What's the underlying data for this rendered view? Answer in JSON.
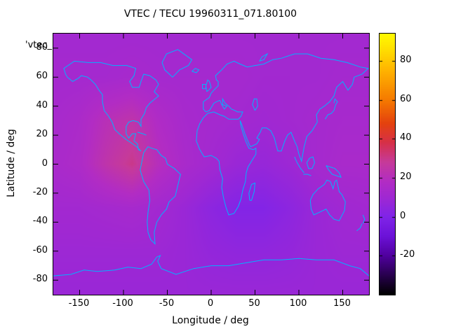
{
  "colors": {
    "background": "#ffffff",
    "text": "#000000",
    "border": "#000000"
  },
  "chart_data": {
    "type": "heatmap",
    "title": "VTEC / TECU 19960311_071.80100",
    "key_label": "'vtec_",
    "xlabel": "Longitude / deg",
    "ylabel": "Latitude / deg",
    "xlim": [
      -180,
      180
    ],
    "ylim": [
      -90,
      90
    ],
    "zlim": [
      -40,
      94
    ],
    "grid_on": false,
    "legend_position": "colorbar-right",
    "xticks": [
      -150,
      -100,
      -50,
      0,
      50,
      100,
      150
    ],
    "yticks": [
      80,
      60,
      40,
      20,
      0,
      -20,
      -40,
      -60,
      -80
    ],
    "colorbar_ticks": [
      80,
      60,
      40,
      20,
      0,
      -20
    ],
    "coast_color": "#00b4ff",
    "palette": [
      {
        "value": -40,
        "color": "#000000"
      },
      {
        "value": -30,
        "color": "#28004e"
      },
      {
        "value": -20,
        "color": "#50009e"
      },
      {
        "value": -10,
        "color": "#6c12d8"
      },
      {
        "value": 0,
        "color": "#8024e8"
      },
      {
        "value": 10,
        "color": "#a028d2"
      },
      {
        "value": 18,
        "color": "#b22cc4"
      },
      {
        "value": 28,
        "color": "#c63a9a"
      },
      {
        "value": 38,
        "color": "#d63048"
      },
      {
        "value": 48,
        "color": "#e4420e"
      },
      {
        "value": 60,
        "color": "#f57a00"
      },
      {
        "value": 75,
        "color": "#ffb300"
      },
      {
        "value": 86,
        "color": "#ffdf00"
      },
      {
        "value": 94,
        "color": "#fffb00"
      }
    ],
    "grid": {
      "lons": [
        -180,
        -150,
        -120,
        -90,
        -60,
        -30,
        0,
        30,
        60,
        90,
        120,
        150,
        180
      ],
      "lats": [
        90,
        60,
        30,
        0,
        -30,
        -60,
        -90
      ],
      "values": [
        [
          11,
          11,
          11,
          11,
          11,
          11,
          11,
          11,
          11,
          11,
          11,
          11,
          11
        ],
        [
          12,
          12,
          12,
          13,
          12,
          12,
          12,
          12,
          11,
          11,
          11,
          12,
          12
        ],
        [
          13,
          15,
          21,
          24,
          17,
          13,
          12,
          11,
          10,
          11,
          12,
          13,
          13
        ],
        [
          14,
          16,
          24,
          30,
          20,
          14,
          11,
          8,
          7,
          9,
          12,
          14,
          14
        ],
        [
          11,
          11,
          12,
          13,
          11,
          8,
          4,
          1,
          1,
          4,
          8,
          10,
          11
        ],
        [
          9,
          9,
          9,
          9,
          9,
          8,
          6,
          5,
          5,
          6,
          8,
          9,
          9
        ],
        [
          8,
          8,
          8,
          8,
          8,
          8,
          8,
          8,
          8,
          8,
          8,
          8,
          8
        ]
      ]
    },
    "coastlines": [
      [
        [
          -166,
          62
        ],
        [
          -168,
          66
        ],
        [
          -156,
          71
        ],
        [
          -140,
          70
        ],
        [
          -126,
          70
        ],
        [
          -112,
          68
        ],
        [
          -96,
          68
        ],
        [
          -86,
          66
        ],
        [
          -88,
          61
        ],
        [
          -93,
          57
        ],
        [
          -90,
          53
        ],
        [
          -82,
          53
        ],
        [
          -80,
          57
        ],
        [
          -77,
          62
        ],
        [
          -70,
          61
        ],
        [
          -63,
          58
        ],
        [
          -60,
          55
        ],
        [
          -65,
          50
        ],
        [
          -60,
          47
        ],
        [
          -66,
          44
        ],
        [
          -70,
          42
        ],
        [
          -74,
          39
        ],
        [
          -76,
          35
        ],
        [
          -80,
          31
        ],
        [
          -80,
          26
        ],
        [
          -83,
          29
        ],
        [
          -89,
          30
        ],
        [
          -94,
          29
        ],
        [
          -97,
          26
        ],
        [
          -97,
          21
        ],
        [
          -94,
          18
        ],
        [
          -90,
          21
        ],
        [
          -86,
          21
        ],
        [
          -88,
          16
        ],
        [
          -84,
          14
        ],
        [
          -83,
          10
        ],
        [
          -80,
          9
        ],
        [
          -85,
          12
        ],
        [
          -92,
          15
        ],
        [
          -97,
          17
        ],
        [
          -105,
          21
        ],
        [
          -110,
          24
        ],
        [
          -113,
          29
        ],
        [
          -117,
          33
        ],
        [
          -122,
          37
        ],
        [
          -124,
          43
        ],
        [
          -124,
          48
        ],
        [
          -128,
          51
        ],
        [
          -132,
          55
        ],
        [
          -137,
          58
        ],
        [
          -141,
          60
        ],
        [
          -148,
          61
        ],
        [
          -152,
          59
        ],
        [
          -158,
          57
        ],
        [
          -164,
          60
        ],
        [
          -166,
          62
        ]
      ],
      [
        [
          -77,
          8
        ],
        [
          -79,
          2
        ],
        [
          -81,
          -4
        ],
        [
          -77,
          -12
        ],
        [
          -71,
          -18
        ],
        [
          -70,
          -25
        ],
        [
          -72,
          -33
        ],
        [
          -73,
          -40
        ],
        [
          -72,
          -47
        ],
        [
          -69,
          -52
        ],
        [
          -64,
          -55
        ],
        [
          -65,
          -47
        ],
        [
          -62,
          -40
        ],
        [
          -57,
          -35
        ],
        [
          -51,
          -31
        ],
        [
          -48,
          -26
        ],
        [
          -41,
          -22
        ],
        [
          -37,
          -12
        ],
        [
          -35,
          -7
        ],
        [
          -42,
          -3
        ],
        [
          -50,
          0
        ],
        [
          -52,
          4
        ],
        [
          -57,
          6
        ],
        [
          -62,
          10
        ],
        [
          -68,
          11
        ],
        [
          -72,
          12
        ],
        [
          -77,
          8
        ]
      ],
      [
        [
          -44,
          60
        ],
        [
          -53,
          65
        ],
        [
          -56,
          70
        ],
        [
          -51,
          76
        ],
        [
          -38,
          79
        ],
        [
          -22,
          72
        ],
        [
          -26,
          68
        ],
        [
          -36,
          65
        ],
        [
          -44,
          60
        ]
      ],
      [
        [
          -6,
          36
        ],
        [
          -9,
          38
        ],
        [
          -9,
          43
        ],
        [
          -2,
          46
        ],
        [
          0,
          49
        ],
        [
          3,
          51
        ],
        [
          8,
          54
        ],
        [
          8,
          57
        ],
        [
          6,
          58
        ],
        [
          5,
          61
        ],
        [
          12,
          65
        ],
        [
          18,
          69
        ],
        [
          26,
          71
        ],
        [
          33,
          69
        ],
        [
          41,
          67
        ],
        [
          50,
          68
        ],
        [
          60,
          69
        ],
        [
          70,
          72
        ],
        [
          80,
          73
        ],
        [
          95,
          76
        ],
        [
          110,
          76
        ],
        [
          125,
          73
        ],
        [
          140,
          72
        ],
        [
          155,
          70
        ],
        [
          170,
          67
        ],
        [
          179,
          66
        ],
        [
          172,
          62
        ],
        [
          163,
          60
        ],
        [
          161,
          55
        ],
        [
          156,
          51
        ],
        [
          150,
          57
        ],
        [
          143,
          53
        ],
        [
          140,
          47
        ],
        [
          135,
          43
        ],
        [
          129,
          40
        ],
        [
          124,
          38
        ],
        [
          120,
          34
        ],
        [
          121,
          29
        ],
        [
          115,
          23
        ],
        [
          109,
          19
        ],
        [
          106,
          12
        ],
        [
          103,
          2
        ],
        [
          100,
          7
        ],
        [
          98,
          12
        ],
        [
          95,
          16
        ],
        [
          91,
          22
        ],
        [
          87,
          20
        ],
        [
          84,
          16
        ],
        [
          80,
          9
        ],
        [
          76,
          9
        ],
        [
          72,
          18
        ],
        [
          68,
          23
        ],
        [
          63,
          25
        ],
        [
          58,
          25
        ],
        [
          56,
          22
        ],
        [
          52,
          18
        ],
        [
          55,
          17
        ],
        [
          52,
          14
        ],
        [
          45,
          12
        ],
        [
          43,
          14
        ],
        [
          39,
          20
        ],
        [
          35,
          27
        ],
        [
          33,
          30
        ],
        [
          34,
          26
        ],
        [
          37,
          20
        ],
        [
          40,
          15
        ],
        [
          43,
          11
        ],
        [
          48,
          10
        ],
        [
          51,
          11
        ],
        [
          51,
          7
        ],
        [
          46,
          2
        ],
        [
          42,
          -2
        ],
        [
          40,
          -6
        ],
        [
          39,
          -12
        ],
        [
          36,
          -18
        ],
        [
          34,
          -24
        ],
        [
          31,
          -29
        ],
        [
          26,
          -34
        ],
        [
          20,
          -35
        ],
        [
          17,
          -30
        ],
        [
          14,
          -23
        ],
        [
          12,
          -16
        ],
        [
          13,
          -10
        ],
        [
          10,
          -4
        ],
        [
          9,
          2
        ],
        [
          6,
          4
        ],
        [
          0,
          6
        ],
        [
          -8,
          5
        ],
        [
          -13,
          10
        ],
        [
          -17,
          16
        ],
        [
          -16,
          23
        ],
        [
          -13,
          28
        ],
        [
          -9,
          32
        ],
        [
          -4,
          35
        ],
        [
          3,
          36
        ],
        [
          10,
          34
        ],
        [
          15,
          33
        ],
        [
          20,
          31
        ],
        [
          27,
          31
        ],
        [
          31,
          31
        ],
        [
          34,
          33
        ],
        [
          36,
          36
        ],
        [
          30,
          36
        ],
        [
          27,
          37
        ],
        [
          23,
          38
        ],
        [
          20,
          40
        ],
        [
          16,
          42
        ],
        [
          13,
          45
        ],
        [
          13,
          41
        ],
        [
          18,
          40
        ],
        [
          15,
          38
        ],
        [
          12,
          41
        ],
        [
          10,
          44
        ],
        [
          6,
          43
        ],
        [
          3,
          42
        ],
        [
          0,
          39
        ],
        [
          -2,
          37
        ],
        [
          -6,
          36
        ]
      ],
      [
        [
          -5,
          50
        ],
        [
          -6,
          54
        ],
        [
          -4,
          58
        ],
        [
          -2,
          57
        ],
        [
          0,
          53
        ],
        [
          -3,
          51
        ],
        [
          -5,
          50
        ]
      ],
      [
        [
          -10,
          52
        ],
        [
          -10,
          55
        ],
        [
          -6,
          55
        ],
        [
          -6,
          52
        ],
        [
          -10,
          52
        ]
      ],
      [
        [
          -22,
          64
        ],
        [
          -18,
          66
        ],
        [
          -14,
          65
        ],
        [
          -17,
          63
        ],
        [
          -22,
          64
        ]
      ],
      [
        [
          130,
          31
        ],
        [
          133,
          34
        ],
        [
          137,
          35
        ],
        [
          140,
          37
        ],
        [
          142,
          41
        ],
        [
          144,
          43
        ],
        [
          141,
          45
        ],
        [
          140,
          42
        ]
      ],
      [
        [
          113,
          -25
        ],
        [
          116,
          -21
        ],
        [
          122,
          -17
        ],
        [
          129,
          -14
        ],
        [
          132,
          -11
        ],
        [
          136,
          -12
        ],
        [
          139,
          -17
        ],
        [
          141,
          -12
        ],
        [
          143,
          -11
        ],
        [
          146,
          -19
        ],
        [
          149,
          -21
        ],
        [
          153,
          -26
        ],
        [
          152,
          -32
        ],
        [
          146,
          -39
        ],
        [
          140,
          -38
        ],
        [
          135,
          -35
        ],
        [
          131,
          -31
        ],
        [
          124,
          -33
        ],
        [
          117,
          -35
        ],
        [
          114,
          -31
        ],
        [
          113,
          -25
        ]
      ],
      [
        [
          131,
          -1
        ],
        [
          136,
          -2
        ],
        [
          141,
          -3
        ],
        [
          146,
          -6
        ],
        [
          148,
          -9
        ],
        [
          143,
          -8
        ],
        [
          138,
          -7
        ],
        [
          134,
          -4
        ],
        [
          131,
          -1
        ]
      ],
      [
        [
          109,
          1
        ],
        [
          112,
          4
        ],
        [
          116,
          5
        ],
        [
          118,
          1
        ],
        [
          115,
          -3
        ],
        [
          111,
          -3
        ],
        [
          109,
          1
        ]
      ],
      [
        [
          95,
          5
        ],
        [
          98,
          1
        ],
        [
          102,
          -3
        ],
        [
          106,
          -6
        ]
      ],
      [
        [
          105,
          -7
        ],
        [
          110,
          -7
        ],
        [
          114,
          -8
        ]
      ],
      [
        [
          44,
          -25
        ],
        [
          43,
          -20
        ],
        [
          46,
          -14
        ],
        [
          50,
          -13
        ],
        [
          49,
          -19
        ],
        [
          46,
          -25
        ],
        [
          44,
          -25
        ]
      ],
      [
        [
          166,
          -46
        ],
        [
          170,
          -44
        ],
        [
          172,
          -41
        ]
      ],
      [
        [
          173,
          -41
        ],
        [
          175,
          -38
        ],
        [
          173,
          -35
        ]
      ],
      [
        [
          50,
          37
        ],
        [
          53,
          40
        ],
        [
          52,
          45
        ],
        [
          49,
          45
        ],
        [
          47,
          41
        ],
        [
          50,
          37
        ]
      ],
      [
        [
          55,
          71
        ],
        [
          58,
          74
        ],
        [
          64,
          76
        ],
        [
          60,
          72
        ],
        [
          55,
          71
        ]
      ],
      [
        [
          -84,
          22
        ],
        [
          -78,
          21
        ],
        [
          -74,
          20
        ]
      ],
      [
        [
          -180,
          -77
        ],
        [
          -160,
          -76
        ],
        [
          -145,
          -73
        ],
        [
          -130,
          -74
        ],
        [
          -110,
          -73
        ],
        [
          -95,
          -71
        ],
        [
          -80,
          -72
        ],
        [
          -68,
          -69
        ],
        [
          -62,
          -64
        ],
        [
          -58,
          -63
        ],
        [
          -61,
          -67
        ],
        [
          -57,
          -72
        ],
        [
          -40,
          -76
        ],
        [
          -20,
          -72
        ],
        [
          0,
          -70
        ],
        [
          20,
          -70
        ],
        [
          40,
          -68
        ],
        [
          60,
          -66
        ],
        [
          80,
          -66
        ],
        [
          100,
          -65
        ],
        [
          120,
          -66
        ],
        [
          140,
          -66
        ],
        [
          158,
          -70
        ],
        [
          170,
          -72
        ],
        [
          180,
          -77
        ]
      ]
    ]
  }
}
